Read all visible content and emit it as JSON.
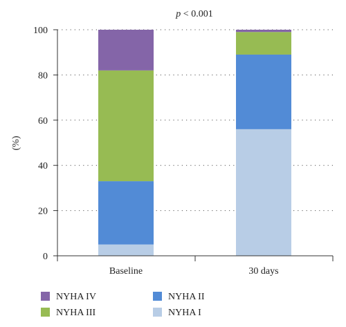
{
  "chart_data": {
    "type": "bar",
    "stacked": true,
    "title_italic": "p",
    "title_rest": " < 0.001",
    "ylabel": "(%)",
    "xlabel": "",
    "ylim": [
      0,
      100
    ],
    "yticks": [
      0,
      20,
      40,
      60,
      80,
      100
    ],
    "grid": "dotted-horizontal",
    "legend_position": "bottom",
    "categories": [
      "Baseline",
      "30 days"
    ],
    "series": [
      {
        "name": "NYHA I",
        "color": "#b8cde6",
        "values": [
          5,
          56
        ]
      },
      {
        "name": "NYHA II",
        "color": "#528bd6",
        "values": [
          28,
          33
        ]
      },
      {
        "name": "NYHA III",
        "color": "#97bb53",
        "values": [
          49,
          10
        ]
      },
      {
        "name": "NYHA IV",
        "color": "#8465a8",
        "values": [
          18,
          1
        ]
      }
    ],
    "legend_order": [
      "NYHA IV",
      "NYHA II",
      "NYHA III",
      "NYHA I"
    ]
  }
}
